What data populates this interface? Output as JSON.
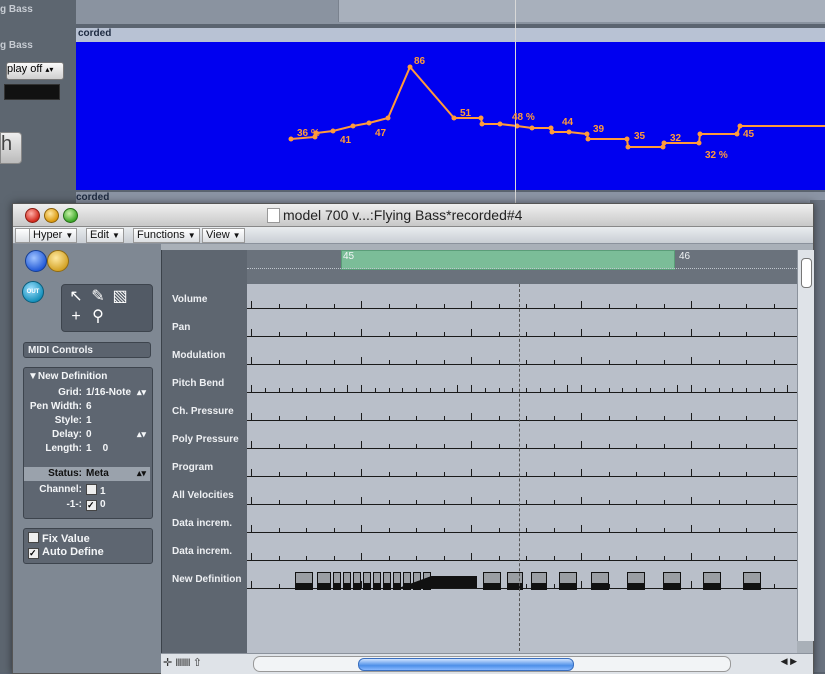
{
  "background": {
    "track_labels": [
      "g Bass",
      "g Bass"
    ],
    "play_off_label": "play off",
    "recorded_label": "corded",
    "recorded_label_2": "corded",
    "big_button_label": "h",
    "value_labels": [
      "36 %",
      "41",
      "47",
      "86",
      "51",
      "48 %",
      "44",
      "39",
      "35",
      "32",
      "32 %",
      "45"
    ],
    "graph_color": "#ff9a3a",
    "graph_bg_color": "#0000f0"
  },
  "window": {
    "title": "model 700 v...:Flying Bass*recorded#4",
    "menus": {
      "hyper": "Hyper",
      "edit": "Edit",
      "functions": "Functions",
      "view": "View"
    }
  },
  "inspector": {
    "out_label": "OUT",
    "midi_controls": "MIDI Controls",
    "definition_title": "▼New Definition",
    "grid": {
      "key": "Grid:",
      "value": "1/16-Note"
    },
    "pen_width": {
      "key": "Pen Width:",
      "value": "6"
    },
    "style": {
      "key": "Style:",
      "value": "1"
    },
    "delay": {
      "key": "Delay:",
      "value": "0"
    },
    "length": {
      "key": "Length:",
      "value": "1    0"
    },
    "status": {
      "key": "Status:",
      "value": "Meta"
    },
    "channel": {
      "key": "Channel:",
      "value": "1"
    },
    "minus1": {
      "key": "-1-:",
      "value": "0"
    },
    "fix_value": "Fix Value",
    "auto_define": "Auto Define"
  },
  "lanes": [
    "Volume",
    "Pan",
    "Modulation",
    "Pitch Bend",
    "Ch. Pressure",
    "Poly Pressure",
    "Program",
    "All Velocities",
    "Data increm.",
    "Data increm.",
    "New Definition"
  ],
  "ruler": {
    "bar_45": "45",
    "bar_46": "46",
    "region_color": "#7bbd98"
  }
}
